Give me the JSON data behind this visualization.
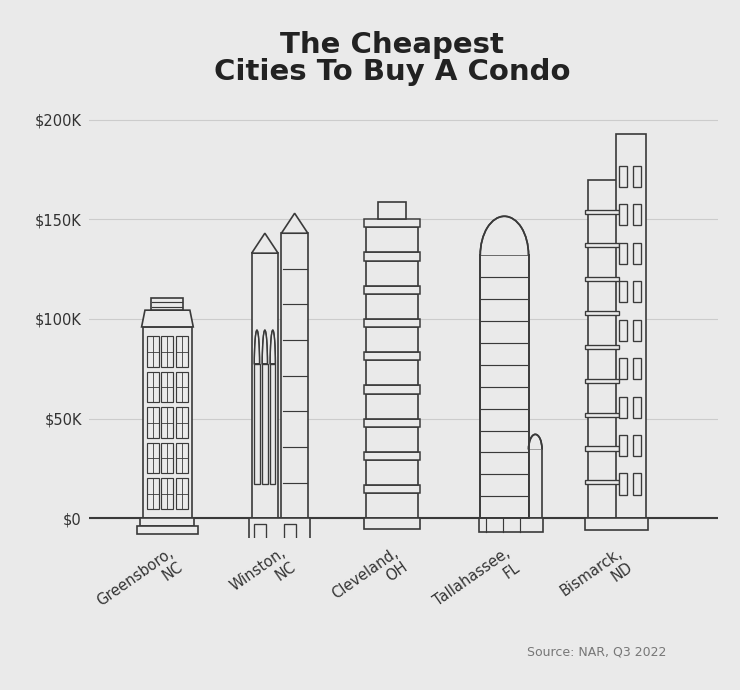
{
  "title_line1": "The Cheapest",
  "title_line2": "Cities To Buy A Condo",
  "cities": [
    "Greensboro,\nNC",
    "Winston,\nNC",
    "Cleveland,\nOH",
    "Tallahassee,\nFL",
    "Bismarck,\nND"
  ],
  "values": [
    120000,
    143000,
    158000,
    150000,
    193000
  ],
  "y_ticks": [
    0,
    50000,
    100000,
    150000,
    200000
  ],
  "y_tick_labels": [
    "$0",
    "$50K",
    "$100K",
    "$150K",
    "$200K"
  ],
  "ylim_max": 215000,
  "ylim_min": -10000,
  "background_color": "#EAEAEA",
  "building_edge_color": "#3a3a3a",
  "building_face_color": "#EAEAEA",
  "grid_color": "#CCCCCC",
  "source_text": "Source: NAR, Q3 2022",
  "title_fontsize": 21,
  "tick_fontsize": 10.5
}
